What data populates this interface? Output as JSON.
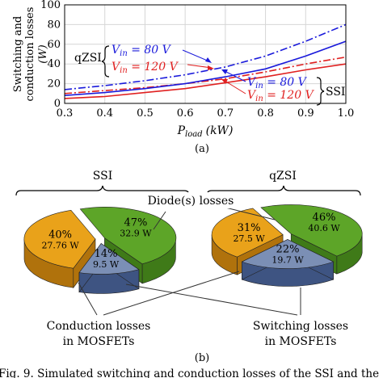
{
  "chart_data": [
    {
      "type": "line",
      "panel_label": "(a)",
      "ylabel": "Switching and conduction losses (W)",
      "ylabel_line1": "Switching and",
      "ylabel_line2": "conduction losses",
      "ylabel_unit": "(W)",
      "xlabel": "P_load (kW)",
      "xlabel_main": "P",
      "xlabel_sub": "load",
      "xlabel_unit": "(kW)",
      "xlim": [
        0.3,
        1.0
      ],
      "ylim": [
        0,
        100
      ],
      "xticks": [
        "0.3",
        "0.4",
        "0.5",
        "0.6",
        "0.7",
        "0.8",
        "0.9",
        "1.0"
      ],
      "yticks": [
        "0",
        "20",
        "40",
        "60",
        "80",
        "100"
      ],
      "grid": true,
      "annotations": {
        "qzsi_group": "qZSI",
        "ssi_group": "SSI",
        "vin80": "V_in = 80 V",
        "vin120": "V_in = 120 V",
        "vin_prefix": "V",
        "vin_sub": "in",
        "vin80_rest": " = 80 V",
        "vin120_rest": " = 120 V"
      },
      "x": [
        0.3,
        0.4,
        0.5,
        0.6,
        0.7,
        0.8,
        0.9,
        1.0
      ],
      "series": [
        {
          "group": "qZSI",
          "vin": "80",
          "color": "#1a1adb",
          "style": "dashdot",
          "values": [
            14,
            18,
            23,
            29,
            37,
            48,
            63,
            80
          ]
        },
        {
          "group": "qZSI",
          "vin": "120",
          "color": "#e02020",
          "style": "dashdot",
          "values": [
            10,
            13,
            16,
            20,
            25,
            32,
            40,
            47
          ]
        },
        {
          "group": "SSI",
          "vin": "80",
          "color": "#1a1adb",
          "style": "solid",
          "values": [
            8,
            11,
            15,
            20,
            27,
            35,
            48,
            63
          ]
        },
        {
          "group": "SSI",
          "vin": "120",
          "color": "#e02020",
          "style": "solid",
          "values": [
            5,
            7,
            11,
            15,
            21,
            27,
            34,
            40
          ]
        }
      ]
    },
    {
      "type": "pie",
      "panel_label": "(b)",
      "title": "SSI",
      "slices": [
        {
          "category": "diode",
          "percent": "47%",
          "value": "32.9 W",
          "color": "#5da528"
        },
        {
          "category": "conduction",
          "percent": "40%",
          "value": "27.76 W",
          "color": "#e9a21a"
        },
        {
          "category": "switching",
          "percent": "14%",
          "value": "9.5 W",
          "color": "#7b8fb5"
        }
      ]
    },
    {
      "type": "pie",
      "title": "qZSI",
      "slices": [
        {
          "category": "diode",
          "percent": "46%",
          "value": "40.6 W",
          "color": "#5da528"
        },
        {
          "category": "conduction",
          "percent": "31%",
          "value": "27.5 W",
          "color": "#e9a21a"
        },
        {
          "category": "switching",
          "percent": "22%",
          "value": "19.7 W",
          "color": "#7b8fb5"
        }
      ]
    }
  ],
  "pie_labels": {
    "diode": "Diode(s) losses",
    "conduction_line1": "Conduction losses",
    "conduction_line2": "in MOSFETs",
    "switching_line1": "Switching losses",
    "switching_line2": "in MOSFETs"
  },
  "caption": "Fig. 9.  Simulated switching and conduction losses of the SSI and the"
}
